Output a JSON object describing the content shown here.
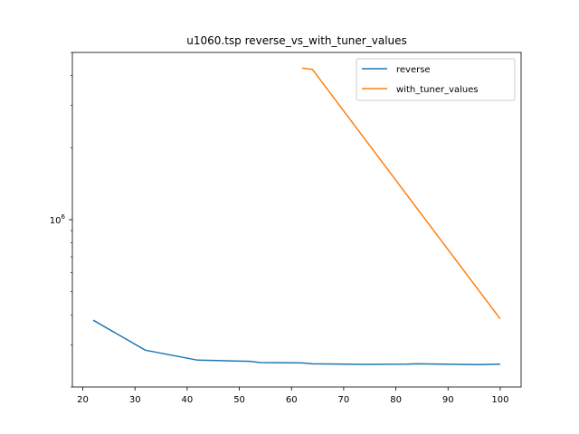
{
  "chart_data": {
    "type": "line",
    "title": "u1060.tsp  reverse_vs_with_tuner_values",
    "xlabel": "",
    "ylabel": "",
    "xlim": [
      18,
      104
    ],
    "ylim": [
      200000,
      5000000
    ],
    "yscale": "log",
    "xticks": [
      20,
      30,
      40,
      50,
      60,
      70,
      80,
      90,
      100
    ],
    "yticks": [
      {
        "value": 1000000,
        "base": "10",
        "exp": "6"
      }
    ],
    "grid": false,
    "legend_position": "top-right",
    "series": [
      {
        "name": "reverse",
        "color": "#1f77b4",
        "x": [
          22,
          32,
          42,
          52,
          54,
          62,
          64,
          74,
          82,
          84,
          96,
          100
        ],
        "y": [
          380000,
          285000,
          259000,
          256000,
          253000,
          252000,
          250000,
          248500,
          249000,
          250000,
          248000,
          249000
        ]
      },
      {
        "name": "with_tuner_values",
        "color": "#ff7f0e",
        "x": [
          62,
          64,
          100
        ],
        "y": [
          4300000,
          4250000,
          385000
        ]
      }
    ]
  }
}
